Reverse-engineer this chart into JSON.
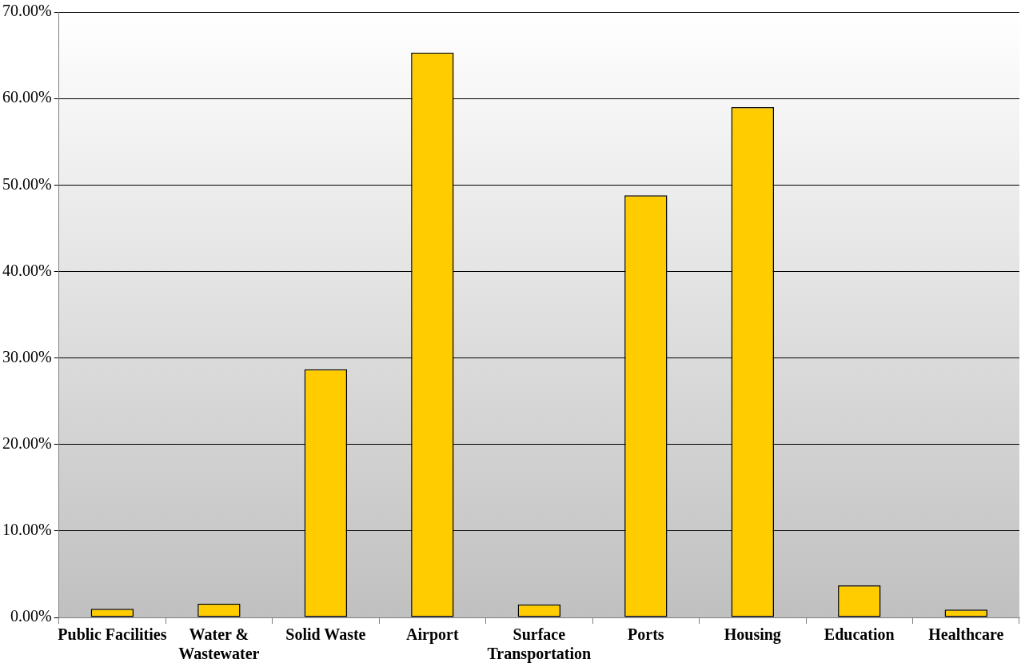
{
  "chart_data": {
    "type": "bar",
    "categories": [
      "Public Facilities",
      "Water & Wastewater",
      "Solid Waste",
      "Airport",
      "Surface Transportation",
      "Ports",
      "Housing",
      "Education",
      "Healthcare"
    ],
    "values": [
      1.0,
      1.6,
      28.7,
      65.3,
      1.5,
      48.8,
      59.0,
      3.7,
      0.9
    ],
    "color": "#ffcc00",
    "ylim": [
      0,
      70
    ],
    "yticks": [
      {
        "value": 0,
        "label": "0.00%"
      },
      {
        "value": 10,
        "label": "10.00%"
      },
      {
        "value": 20,
        "label": "20.00%"
      },
      {
        "value": 30,
        "label": "30.00%"
      },
      {
        "value": 40,
        "label": "40.00%"
      },
      {
        "value": 50,
        "label": "50.00%"
      },
      {
        "value": 60,
        "label": "60.00%"
      },
      {
        "value": 70,
        "label": "70.00%"
      }
    ],
    "grid": "y",
    "legend": false
  }
}
